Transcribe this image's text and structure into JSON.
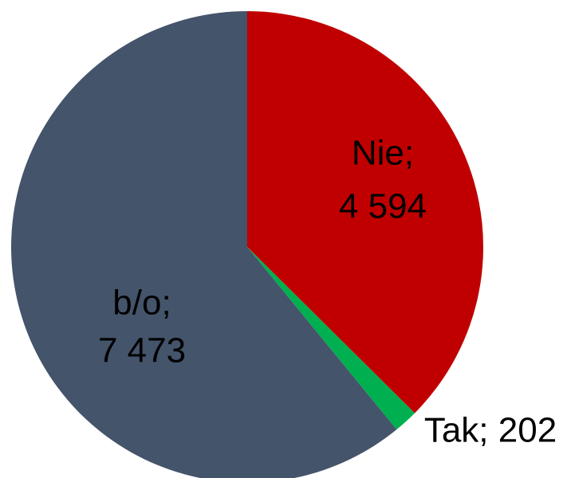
{
  "chart_data": {
    "type": "pie",
    "values": [
      4594,
      202,
      7473
    ],
    "value_labels": [
      [
        "Nie;",
        "4 594"
      ],
      [
        "Tak; 202"
      ],
      [
        "b/o;",
        "7 473"
      ]
    ],
    "colors": [
      "#c00000",
      "#00b050",
      "#44546a"
    ],
    "start_angle": 0,
    "direction": "clockwise"
  }
}
